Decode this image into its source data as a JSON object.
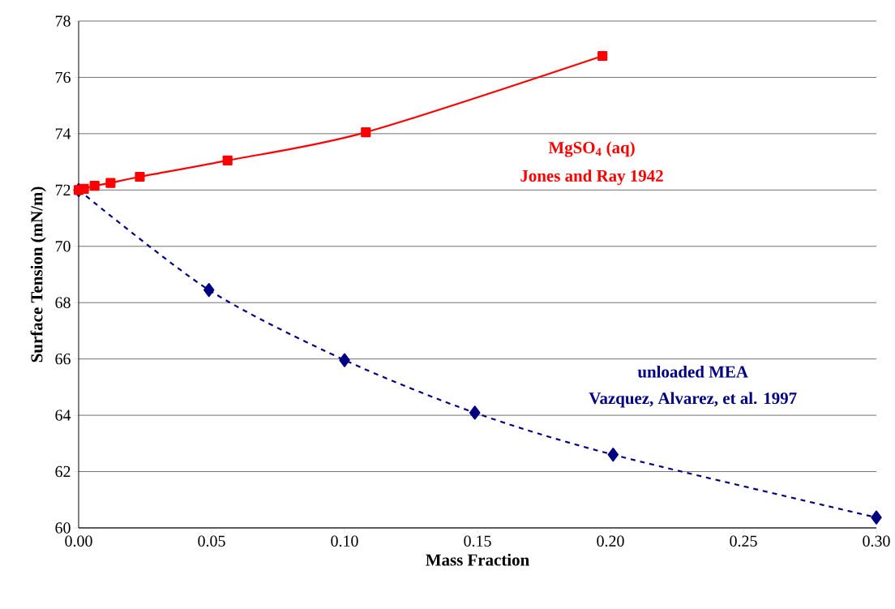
{
  "chart_data": {
    "type": "line",
    "xlabel": "Mass Fraction",
    "ylabel": "Surface Tension (mN/m)",
    "xlim": [
      0,
      0.3
    ],
    "xticks": [
      {
        "value": 0,
        "label": "0.00"
      },
      {
        "value": 0.05,
        "label": "0.05"
      },
      {
        "value": 0.1,
        "label": "0.10"
      },
      {
        "value": 0.15,
        "label": "0.15"
      },
      {
        "value": 0.2,
        "label": "0.20"
      },
      {
        "value": 0.25,
        "label": "0.25"
      },
      {
        "value": 0.3,
        "label": "0.30"
      }
    ],
    "ylim": [
      60,
      78
    ],
    "yticks": [
      60,
      62,
      64,
      66,
      68,
      70,
      72,
      74,
      76,
      78
    ],
    "grid": "y",
    "legend": false,
    "series": [
      {
        "name": "MgSO$_{4}$ (aq)",
        "color": "#ff0000",
        "marker": "square",
        "line_style": "solid",
        "x": [
          0,
          0.002,
          0.006,
          0.012,
          0.023,
          0.056,
          0.108,
          0.197
        ],
        "values": [
          72.0,
          72.04,
          72.15,
          72.25,
          72.47,
          73.05,
          74.05,
          76.76
        ]
      },
      {
        "name": "unloaded MEA",
        "color": "#000080",
        "marker": "diamond",
        "line_style": "dashed",
        "x": [
          0,
          0.049,
          0.1,
          0.149,
          0.201,
          0.3
        ],
        "values": [
          72.0,
          68.45,
          65.96,
          64.09,
          62.6,
          60.37
        ]
      }
    ],
    "annotations": [
      "Jones and Ray 1942",
      "Vazquez, Alvarez, et al. 1997"
    ]
  }
}
